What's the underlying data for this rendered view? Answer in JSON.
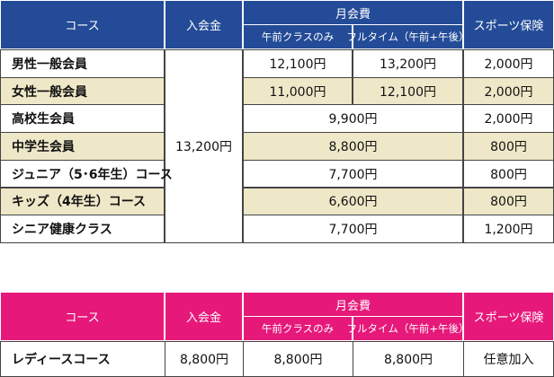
{
  "table1": {
    "header": {
      "course": "コース",
      "entry": "入会金",
      "monthly": "月会費",
      "morning": "午前クラスのみ",
      "full": "フルタイム（午前+午後）",
      "insurance": "スポーツ保険"
    },
    "entry_fee": "13,200円",
    "rows": [
      [
        "男性一般会員",
        "12,100円",
        "13,200円",
        "2,000円"
      ],
      [
        "女性一般会員",
        "11,000円",
        "12,100円",
        "2,000円"
      ],
      [
        "高校生会員",
        "9,900円",
        "2,000円"
      ],
      [
        "中学生会員",
        "8,800円",
        "800円"
      ],
      [
        "ジュニア（5･6年生）コース",
        "7,700円",
        "800円"
      ],
      [
        "キッズ（4年生）コース",
        "6,600円",
        "800円"
      ],
      [
        "シニア健康クラス",
        "7,700円",
        "1,200円"
      ]
    ]
  },
  "table2": {
    "header": {
      "course": "コース",
      "entry": "入会金",
      "monthly": "月会費",
      "morning": "午前クラスのみ",
      "full": "フルタイム（午前+午後）",
      "insurance": "スポーツ保険"
    },
    "rows": [
      [
        "レディースコース",
        "8,800円",
        "8,800円",
        "8,800円",
        "任意加入"
      ]
    ]
  }
}
